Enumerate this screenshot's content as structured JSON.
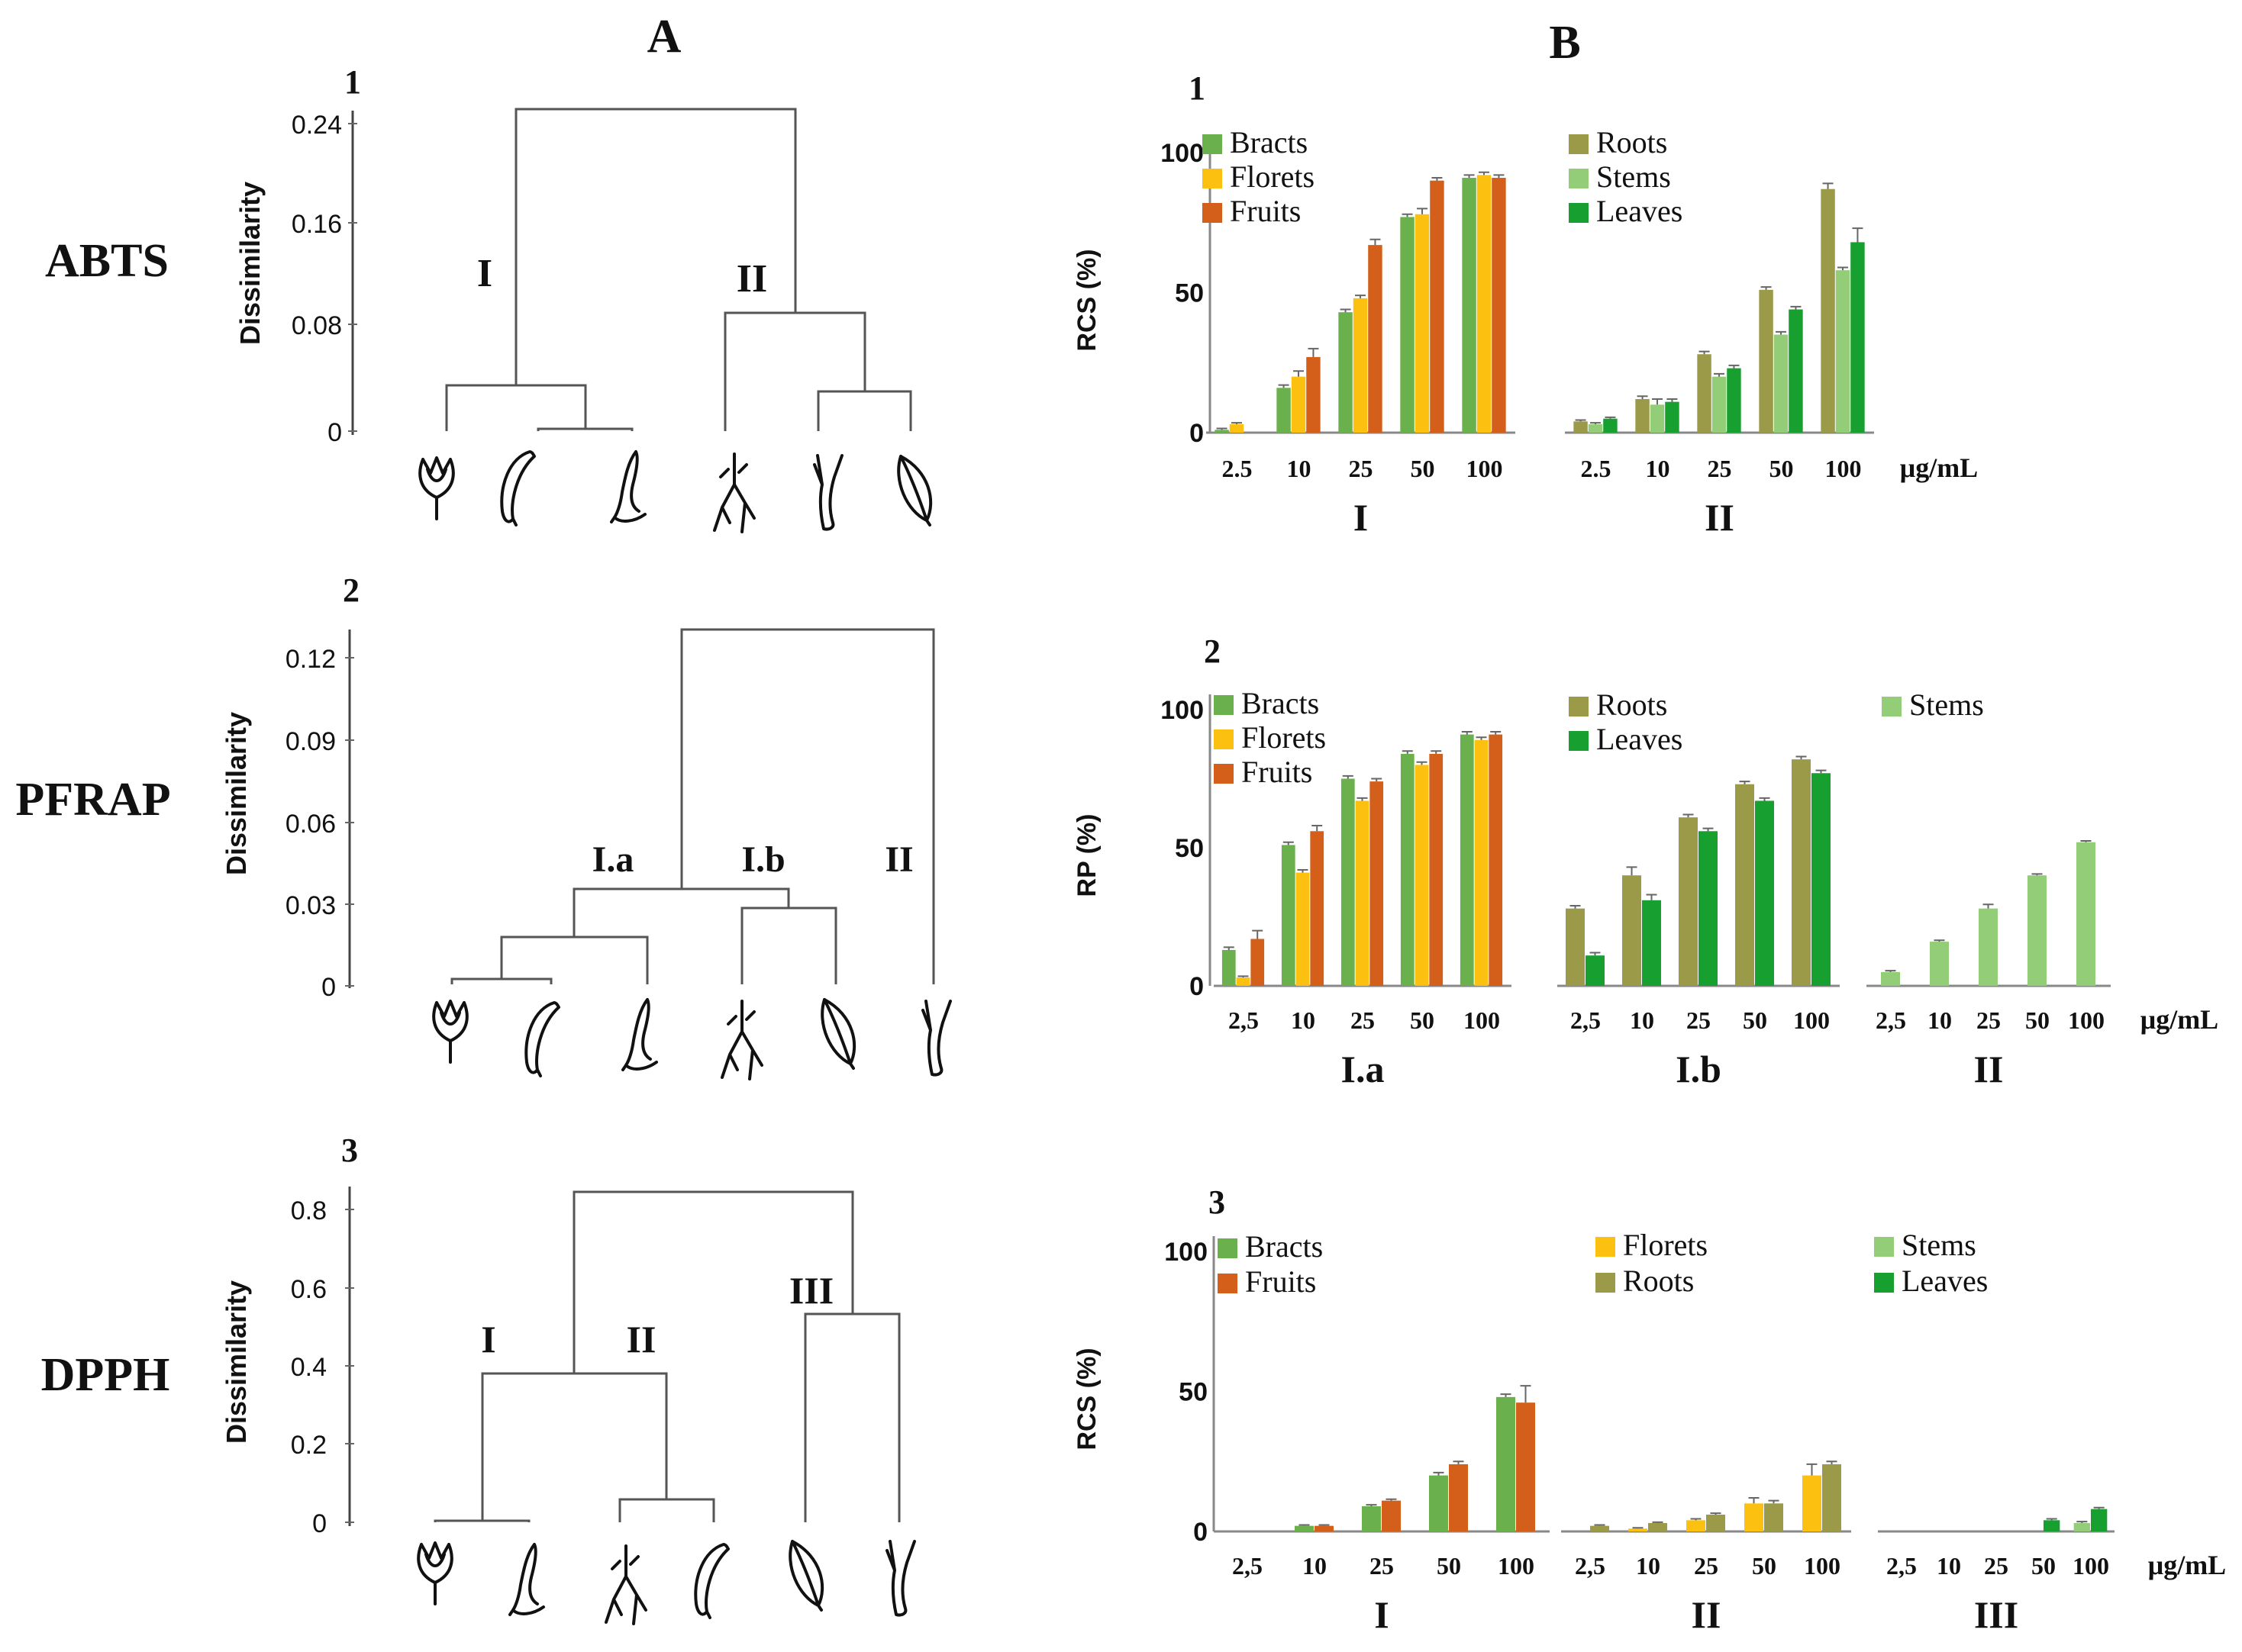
{
  "labels": {
    "panel_a": "A",
    "panel_b": "B"
  },
  "rows": [
    {
      "num": "1",
      "assay": "ABTS"
    },
    {
      "num": "2",
      "assay": "PFRAP"
    },
    {
      "num": "3",
      "assay": "DPPH"
    }
  ],
  "dendrograms": [
    {
      "ylabel": "Dissimilarity",
      "ticks": [
        "0",
        "0.08",
        "0.16",
        "0.24"
      ],
      "ymax": 0.25,
      "leaves": [
        "florets",
        "bracts",
        "fruits",
        "roots",
        "stems",
        "leaves"
      ],
      "clusters": [
        "I",
        "II"
      ]
    },
    {
      "ylabel": "Dissimilarity",
      "ticks": [
        "0",
        "0.03",
        "0.06",
        "0.09",
        "0.12"
      ],
      "ymax": 0.13,
      "leaves": [
        "florets",
        "bracts",
        "fruits",
        "roots",
        "leaves",
        "stems"
      ],
      "clusters": [
        "I.a",
        "I.b",
        "II"
      ]
    },
    {
      "ylabel": "Dissimilarity",
      "ticks": [
        "0",
        "0.2",
        "0.4",
        "0.6",
        "0.8"
      ],
      "ymax": 0.85,
      "leaves": [
        "florets",
        "fruits",
        "roots",
        "bracts",
        "leaves",
        "stems"
      ],
      "clusters": [
        "I",
        "II",
        "III"
      ]
    }
  ],
  "colors": {
    "Bracts": "#6ab04c",
    "Florets": "#fcc010",
    "Fruits": "#d35f1a",
    "Roots": "#9a9a48",
    "Stems": "#93cd77",
    "Leaves": "#17a030"
  },
  "chart_data": [
    {
      "type": "bar",
      "ylabel": "RCS (%)",
      "ylim": [
        0,
        100
      ],
      "yticks": [
        "0",
        "50",
        "100"
      ],
      "unit": "μg/mL",
      "groups": [
        {
          "label": "I",
          "categories": [
            "2.5",
            "10",
            "25",
            "50",
            "100"
          ],
          "series": [
            {
              "name": "Bracts",
              "values": [
                1,
                16,
                43,
                77,
                91
              ],
              "errors": [
                0.5,
                1,
                1,
                1,
                1
              ]
            },
            {
              "name": "Florets",
              "values": [
                3,
                20,
                48,
                78,
                92
              ],
              "errors": [
                0.5,
                2,
                1,
                2,
                1
              ]
            },
            {
              "name": "Fruits",
              "values": [
                null,
                27,
                67,
                90,
                91
              ],
              "errors": [
                0,
                3,
                2,
                1,
                1
              ]
            }
          ]
        },
        {
          "label": "II",
          "categories": [
            "2.5",
            "10",
            "25",
            "50",
            "100"
          ],
          "series": [
            {
              "name": "Roots",
              "values": [
                4,
                12,
                28,
                51,
                87
              ],
              "errors": [
                0.5,
                1,
                1,
                1,
                2
              ]
            },
            {
              "name": "Stems",
              "values": [
                3,
                10,
                20,
                35,
                58
              ],
              "errors": [
                0.5,
                2,
                1,
                1,
                1
              ]
            },
            {
              "name": "Leaves",
              "values": [
                5,
                11,
                23,
                44,
                68
              ],
              "errors": [
                0.5,
                1,
                1,
                1,
                5
              ]
            }
          ]
        }
      ]
    },
    {
      "type": "bar",
      "ylabel": "RP (%)",
      "ylim": [
        0,
        100
      ],
      "yticks": [
        "0",
        "50",
        "100"
      ],
      "unit": "μg/mL",
      "groups": [
        {
          "label": "I.a",
          "categories": [
            "2,5",
            "10",
            "25",
            "50",
            "100"
          ],
          "series": [
            {
              "name": "Bracts",
              "values": [
                13,
                51,
                75,
                84,
                91
              ],
              "errors": [
                1,
                1,
                1,
                1,
                1
              ]
            },
            {
              "name": "Florets",
              "values": [
                3,
                41,
                67,
                80,
                89
              ],
              "errors": [
                0.5,
                1,
                1,
                1,
                1
              ]
            },
            {
              "name": "Fruits",
              "values": [
                17,
                56,
                74,
                84,
                91
              ],
              "errors": [
                3,
                2,
                1,
                1,
                1
              ]
            }
          ]
        },
        {
          "label": "I.b",
          "categories": [
            "2,5",
            "10",
            "25",
            "50",
            "100"
          ],
          "series": [
            {
              "name": "Roots",
              "values": [
                28,
                40,
                61,
                73,
                82
              ],
              "errors": [
                1,
                3,
                1,
                1,
                1
              ]
            },
            {
              "name": "Leaves",
              "values": [
                11,
                31,
                56,
                67,
                77
              ],
              "errors": [
                1,
                2,
                1,
                1,
                1
              ]
            }
          ]
        },
        {
          "label": "II",
          "categories": [
            "2,5",
            "10",
            "25",
            "50",
            "100"
          ],
          "series": [
            {
              "name": "Stems",
              "values": [
                5,
                16,
                28,
                40,
                52
              ],
              "errors": [
                0.5,
                0.5,
                1.5,
                0.5,
                0.5
              ]
            }
          ]
        }
      ]
    },
    {
      "type": "bar",
      "ylabel": "RCS (%)",
      "ylim": [
        0,
        100
      ],
      "yticks": [
        "0",
        "50",
        "100"
      ],
      "unit": "μg/mL",
      "groups": [
        {
          "label": "I",
          "categories": [
            "2,5",
            "10",
            "25",
            "50",
            "100"
          ],
          "series": [
            {
              "name": "Bracts",
              "values": [
                null,
                2,
                9,
                20,
                48
              ],
              "errors": [
                0,
                0.3,
                0.5,
                1,
                1
              ]
            },
            {
              "name": "Fruits",
              "values": [
                null,
                2,
                11,
                24,
                46
              ],
              "errors": [
                0,
                0.3,
                0.5,
                1,
                6
              ]
            }
          ]
        },
        {
          "label": "II",
          "categories": [
            "2,5",
            "10",
            "25",
            "50",
            "100"
          ],
          "series": [
            {
              "name": "Florets",
              "values": [
                null,
                1,
                4,
                10,
                20
              ],
              "errors": [
                0,
                0.3,
                0.5,
                2,
                4
              ]
            },
            {
              "name": "Roots",
              "values": [
                2,
                3,
                6,
                10,
                24
              ],
              "errors": [
                0.3,
                0.3,
                0.5,
                1,
                1
              ]
            }
          ]
        },
        {
          "label": "III",
          "categories": [
            "2,5",
            "10",
            "25",
            "50",
            "100"
          ],
          "series": [
            {
              "name": "Stems",
              "values": [
                null,
                null,
                null,
                null,
                3
              ],
              "errors": [
                0,
                0,
                0,
                0,
                0.5
              ]
            },
            {
              "name": "Leaves",
              "values": [
                null,
                null,
                null,
                4,
                8
              ],
              "errors": [
                0,
                0,
                0,
                0.5,
                0.5
              ]
            }
          ]
        }
      ]
    }
  ]
}
